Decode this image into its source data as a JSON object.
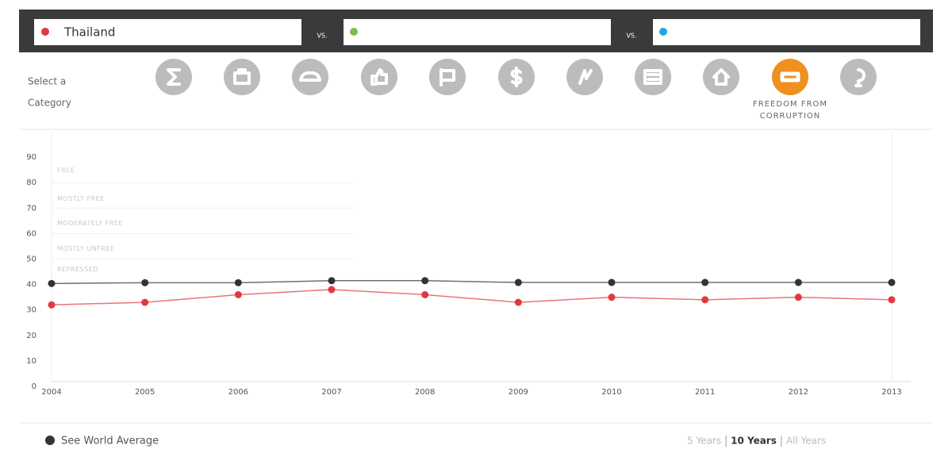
{
  "vs_labels": [
    "VS.",
    "VS."
  ],
  "category_prompt": [
    "Select a",
    "Category"
  ],
  "selected_category": [
    "FREEDOM FROM",
    "CORRUPTION"
  ],
  "time_ranges": [
    "5 Years",
    "10 Years",
    "All Years"
  ],
  "selected_range": 1,
  "chart_data": {
    "type": "line",
    "categories": [
      "2004",
      "2005",
      "2006",
      "2007",
      "2008",
      "2009",
      "2010",
      "2011",
      "2012",
      "2013"
    ],
    "series": [
      {
        "name": "Thailand",
        "color": "#e0393e",
        "values": [
          32,
          33,
          36,
          38,
          36,
          33,
          35,
          34,
          35,
          34
        ]
      },
      {
        "name": "See World Average",
        "color": "#333333",
        "values": [
          40.4,
          40.7,
          40.7,
          41.5,
          41.5,
          40.8,
          40.8,
          40.8,
          40.8,
          40.8
        ]
      }
    ],
    "ylim": [
      0,
      100
    ],
    "yticks": [
      0,
      10,
      20,
      30,
      40,
      50,
      60,
      70,
      80,
      90
    ],
    "bands": [
      {
        "label": "FREE",
        "min": 80
      },
      {
        "label": "MOSTLY FREE",
        "min": 70
      },
      {
        "label": "MODERATELY FREE",
        "min": 60
      },
      {
        "label": "MOSTLY UNFREE",
        "min": 50
      },
      {
        "label": "REPRESSED",
        "min": 0
      }
    ]
  }
}
